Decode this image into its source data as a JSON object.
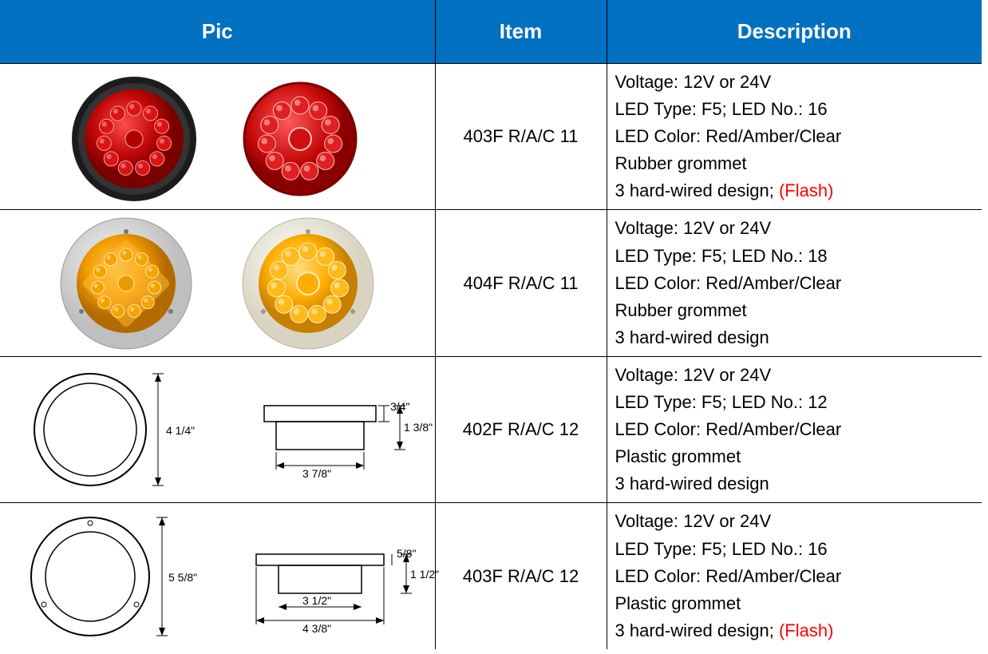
{
  "header": {
    "pic": "Pic",
    "item": "Item",
    "desc": "Description"
  },
  "col_widths": {
    "pic": 545,
    "item": 215,
    "desc": 470
  },
  "header_bg": "#0070c0",
  "flash_color": "#ff0000",
  "rows": [
    {
      "pic_type": "photo-red",
      "item": "403F R/A/C 11",
      "desc": [
        {
          "text": "Voltage: 12V or 24V"
        },
        {
          "text": "LED Type: F5; LED No.: 16"
        },
        {
          "text": "LED Color: Red/Amber/Clear"
        },
        {
          "text": "Rubber grommet"
        },
        {
          "text": "3 hard-wired design; ",
          "suffix_flash": "(Flash)"
        }
      ]
    },
    {
      "pic_type": "photo-amber",
      "item": "404F R/A/C 11",
      "desc": [
        {
          "text": "Voltage: 12V or 24V"
        },
        {
          "text": "LED Type: F5; LED No.: 18"
        },
        {
          "text": "LED Color: Red/Amber/Clear"
        },
        {
          "text": "Rubber grommet"
        },
        {
          "text": "3 hard-wired design"
        }
      ]
    },
    {
      "pic_type": "diagram-1",
      "dims": {
        "outer_dia": "4 1/4\"",
        "body_w": "3 7/8\"",
        "top": "3/4\"",
        "depth": "1 3/8\""
      },
      "item": "402F R/A/C 12",
      "desc": [
        {
          "text": "Voltage: 12V or 24V"
        },
        {
          "text": "LED Type: F5; LED No.: 12"
        },
        {
          "text": "LED Color: Red/Amber/Clear"
        },
        {
          "text": "Plastic grommet"
        },
        {
          "text": "3 hard-wired design"
        }
      ]
    },
    {
      "pic_type": "diagram-2",
      "dims": {
        "outer_dia": "5 5/8\"",
        "body_w": "3 1/2\"",
        "flange_w": "4 3/8\"",
        "top": "5/8\"",
        "depth": "1 1/2\""
      },
      "item": "403F R/A/C 12",
      "desc": [
        {
          "text": "Voltage: 12V or 24V"
        },
        {
          "text": "LED Type: F5; LED No.: 16"
        },
        {
          "text": "LED Color: Red/Amber/Clear"
        },
        {
          "text": "Plastic grommet"
        },
        {
          "text": "3 hard-wired design; ",
          "suffix_flash": "(Flash)"
        }
      ]
    }
  ]
}
